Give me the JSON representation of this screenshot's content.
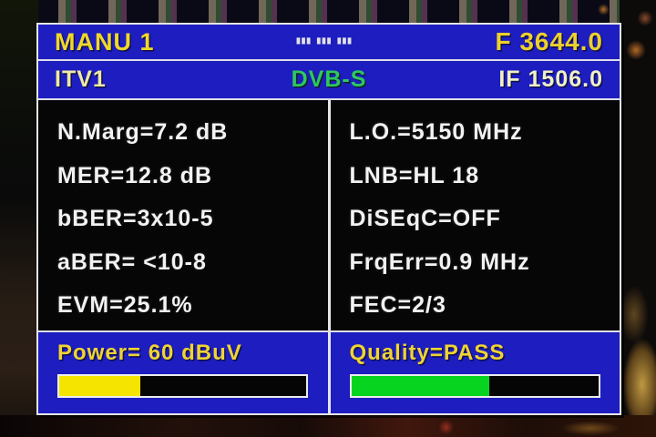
{
  "device_osd": {
    "header": {
      "mode": "MANU 1",
      "center_marks": "███ ███ ███",
      "frequency": "F 3644.0"
    },
    "channel_bar": {
      "channel_name": "ITV1",
      "signal_standard": "DVB-S",
      "if_frequency": "IF 1506.0"
    },
    "measurements": {
      "left": [
        "N.Marg=7.2 dB",
        "MER=12.8 dB",
        "bBER=3x10-5",
        "aBER= <10-8",
        "EVM=25.1%"
      ],
      "right": [
        "L.O.=5150 MHz",
        "LNB=HL 18",
        "DiSEqC=OFF",
        "FrqErr=0.9 MHz",
        "FEC=2/3"
      ]
    },
    "power_meter": {
      "label": "Power= 60 dBuV",
      "value_percent": 33,
      "bar_style": "width:33%;background:#f5e400;"
    },
    "quality_meter": {
      "label": "Quality=PASS",
      "value_percent": 56,
      "bar_style": "width:56%;background:#06d41e;"
    },
    "colors": {
      "panel_blue": "#1d1dc0",
      "accent_yellow": "#f0d82a",
      "standard_green": "#2ec85e",
      "bar_yellow": "#f5e400",
      "bar_green": "#06d41e",
      "text_white": "#f2f2f2"
    }
  }
}
